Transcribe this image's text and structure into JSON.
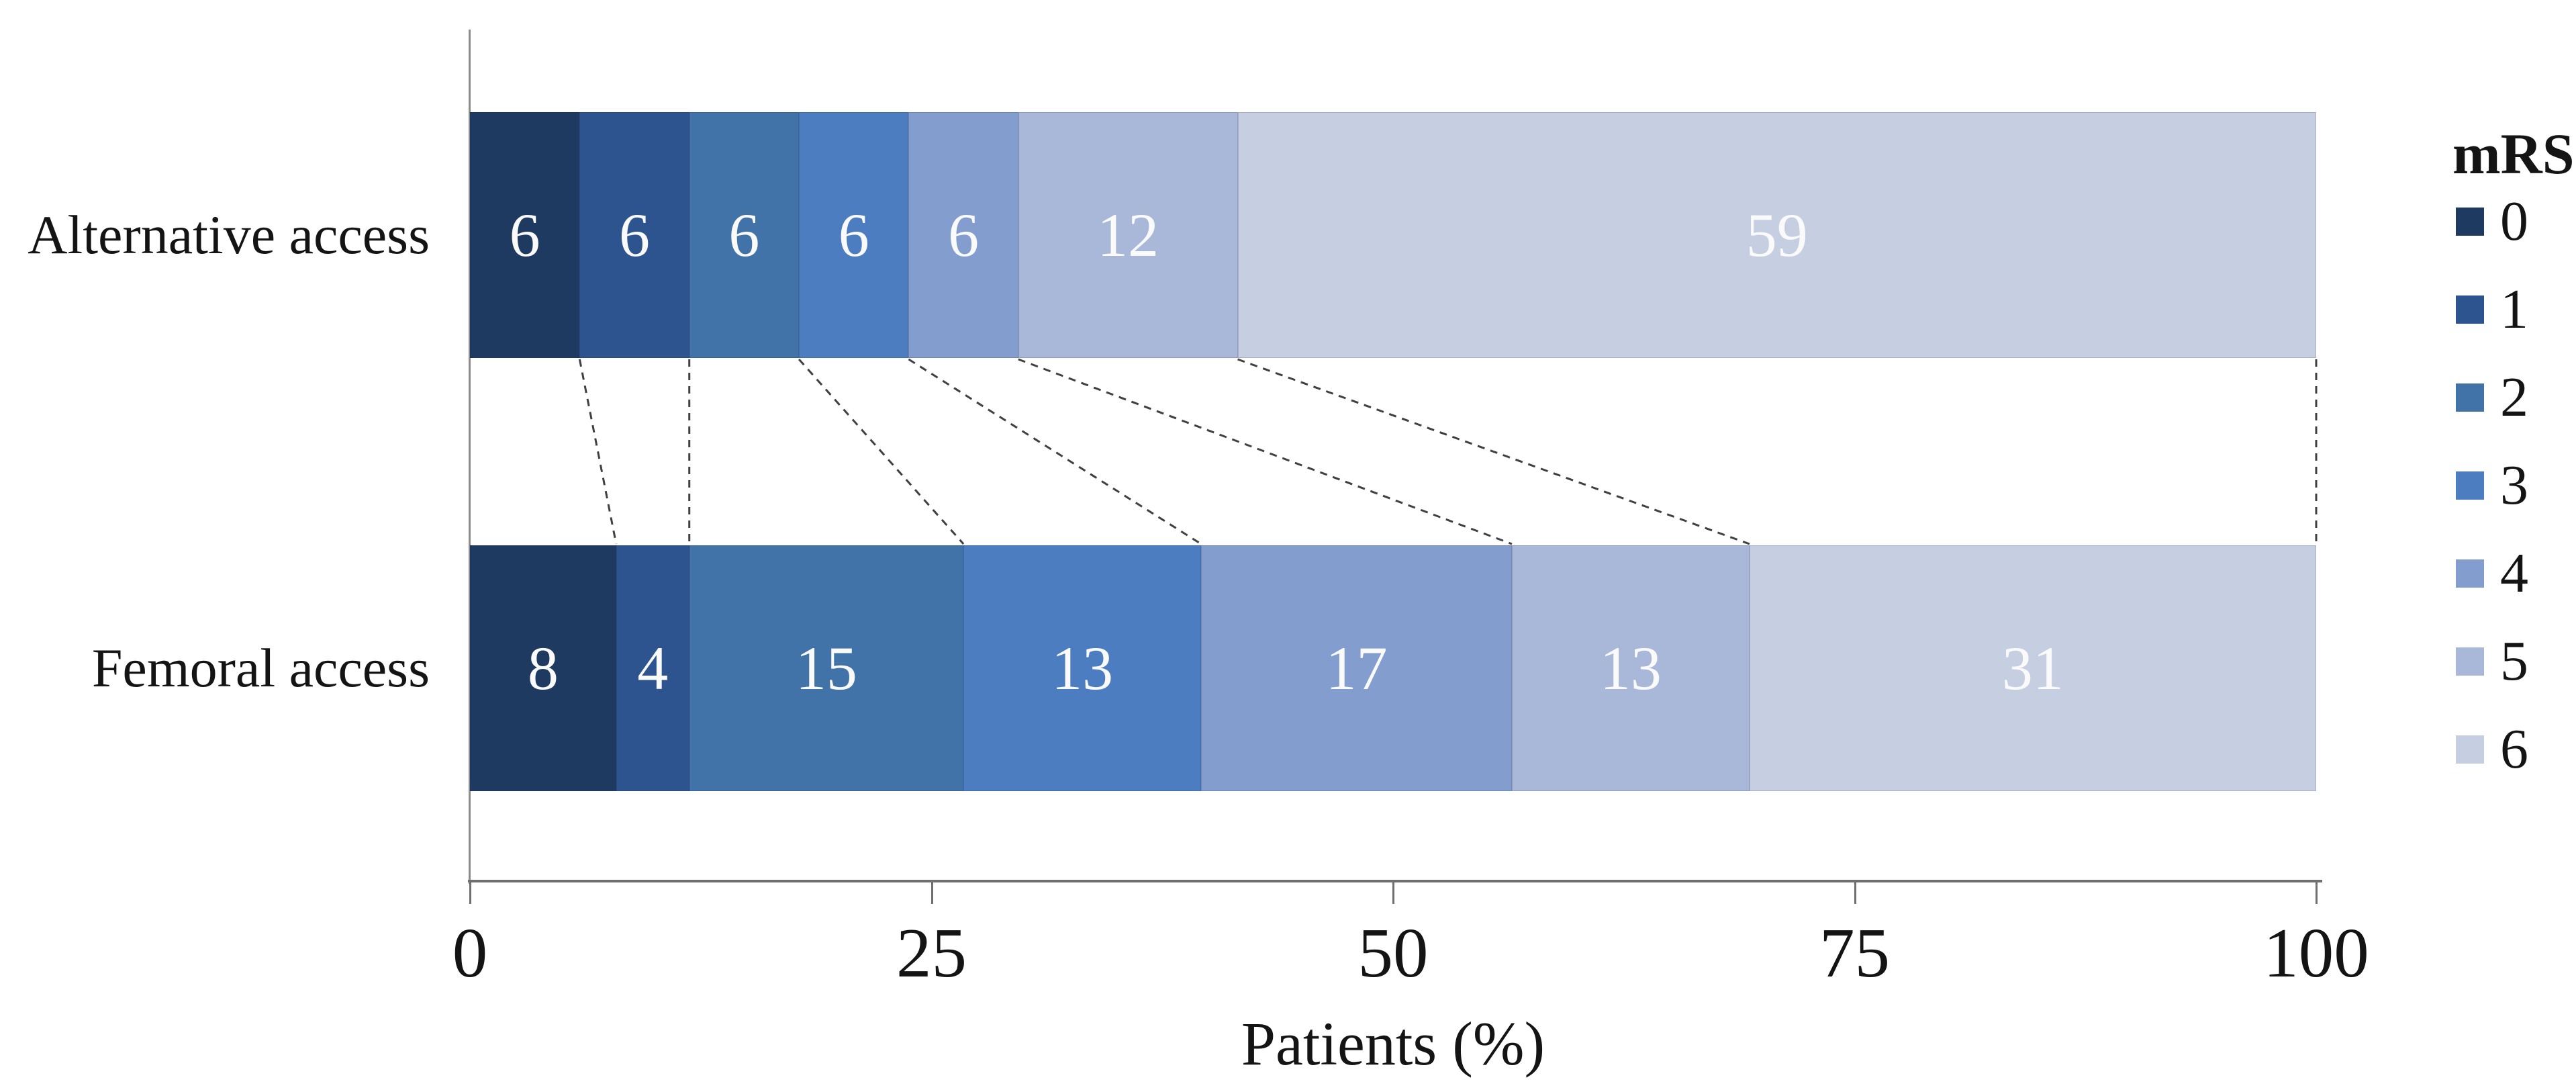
{
  "chart_data": {
    "type": "bar",
    "variant": "horizontal-100pct-stacked",
    "title": "",
    "xlabel": "Patients (%)",
    "ylabel": "",
    "xlim": [
      0,
      100
    ],
    "x_ticks": [
      "0",
      "25",
      "50",
      "75",
      "100"
    ],
    "x_tick_values": [
      0,
      25,
      50,
      75,
      100
    ],
    "grid": false,
    "categories": [
      "Alternative access",
      "Femoral access"
    ],
    "legend": {
      "title": "mRS",
      "position": "right",
      "entries": [
        "0",
        "1",
        "2",
        "3",
        "4",
        "5",
        "6"
      ]
    },
    "series": [
      {
        "name": "0",
        "color": "#1f3a60",
        "values": [
          6,
          8
        ]
      },
      {
        "name": "1",
        "color": "#2e5490",
        "values": [
          6,
          4
        ]
      },
      {
        "name": "2",
        "color": "#4173a9",
        "values": [
          6,
          15
        ]
      },
      {
        "name": "3",
        "color": "#4c7dc0",
        "values": [
          6,
          13
        ]
      },
      {
        "name": "4",
        "color": "#829dce",
        "values": [
          6,
          17
        ]
      },
      {
        "name": "5",
        "color": "#a9b8d9",
        "values": [
          12,
          13
        ]
      },
      {
        "name": "6",
        "color": "#c6cfe2",
        "values": [
          59,
          31
        ]
      }
    ],
    "value_labels_shown": true,
    "value_label_color": "#fafafa",
    "connectors_between_bars": true
  },
  "colors": {
    "background": "#ffffff",
    "axis": "#6f6f6f",
    "axis_light": "#8c8c8c",
    "text": "#141414",
    "connector": "#404040"
  }
}
